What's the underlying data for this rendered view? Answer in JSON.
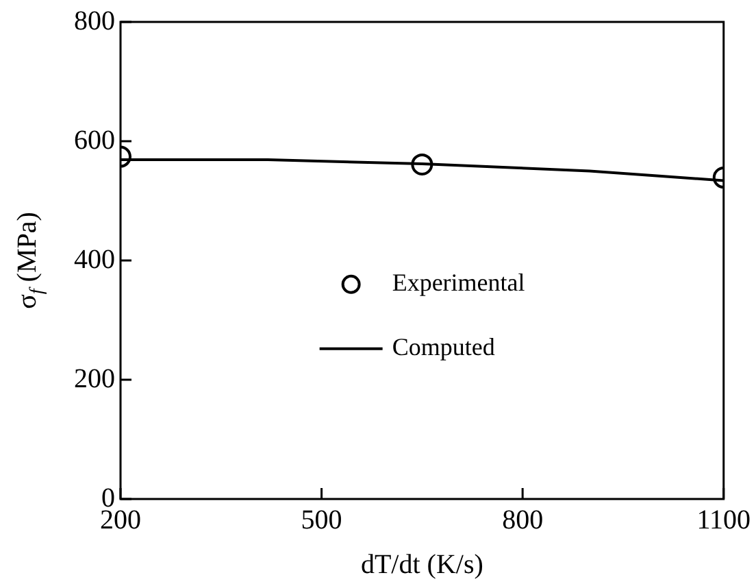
{
  "chart_data": {
    "type": "scatter",
    "xlabel": "dT/dt (K/s)",
    "ylabel": "σ$_{f}$ (MPa)",
    "xlim": [
      200,
      1100
    ],
    "xticks": [
      200,
      500,
      800,
      1100
    ],
    "ylim": [
      0,
      800
    ],
    "yticks": [
      0,
      200,
      400,
      600,
      800
    ],
    "legend": "center",
    "series": [
      {
        "name": "Experimental",
        "marker": "circle",
        "color": "#000000",
        "x": [
          200,
          650,
          1100
        ],
        "values": [
          574,
          561,
          539
        ]
      },
      {
        "name": "Computed",
        "type": "line",
        "marker": "none",
        "color": "#000000",
        "x": [
          200,
          420,
          650,
          900,
          1100
        ],
        "values": [
          569,
          569,
          562,
          550,
          534
        ]
      }
    ]
  }
}
